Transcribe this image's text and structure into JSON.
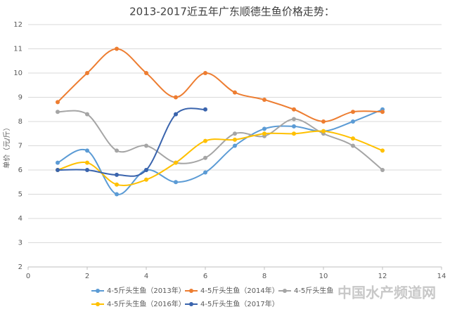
{
  "chart_data": {
    "type": "line",
    "title": "2013-2017近五年广东顺德生鱼价格走势：",
    "y_label": "单价（元/斤）",
    "x": [
      1,
      2,
      3,
      4,
      5,
      6,
      7,
      8,
      9,
      10,
      11,
      12
    ],
    "series": [
      {
        "name": "4-5斤头生鱼（2013年）",
        "color": "#5b9bd5",
        "values": [
          6.3,
          6.8,
          5.0,
          6.0,
          5.5,
          5.9,
          7.0,
          7.7,
          7.8,
          7.6,
          8.0,
          8.5
        ]
      },
      {
        "name": "4-5斤头生鱼（2014年）",
        "color": "#ed7d31",
        "values": [
          8.8,
          10,
          11,
          10,
          9,
          10,
          9.2,
          8.9,
          8.5,
          8.0,
          8.4,
          8.4
        ]
      },
      {
        "name": "4-5斤头生鱼",
        "color": "#a5a5a5",
        "values": [
          8.4,
          8.3,
          6.8,
          7.0,
          6.3,
          6.5,
          7.5,
          7.4,
          8.1,
          7.5,
          7.0,
          6.0
        ]
      },
      {
        "name": "4-5斤头生鱼（2016年）",
        "color": "#ffc000",
        "values": [
          6.0,
          6.3,
          5.4,
          5.6,
          6.3,
          7.2,
          7.25,
          7.5,
          7.5,
          7.6,
          7.3,
          6.8
        ]
      },
      {
        "name": "4-5斤头生鱼（2017年）",
        "color": "#3a64ad",
        "values": [
          6.0,
          6.0,
          5.8,
          6.0,
          8.3,
          8.5,
          null,
          null,
          null,
          null,
          null,
          null
        ]
      }
    ],
    "xlim": [
      0,
      14
    ],
    "xticks": [
      0,
      2,
      4,
      6,
      8,
      10,
      12,
      14
    ],
    "ylim": [
      2,
      12
    ],
    "yticks": [
      2,
      3,
      4,
      5,
      6,
      7,
      8,
      9,
      10,
      11,
      12
    ],
    "grid": true,
    "watermark": "中国水产频道网"
  }
}
